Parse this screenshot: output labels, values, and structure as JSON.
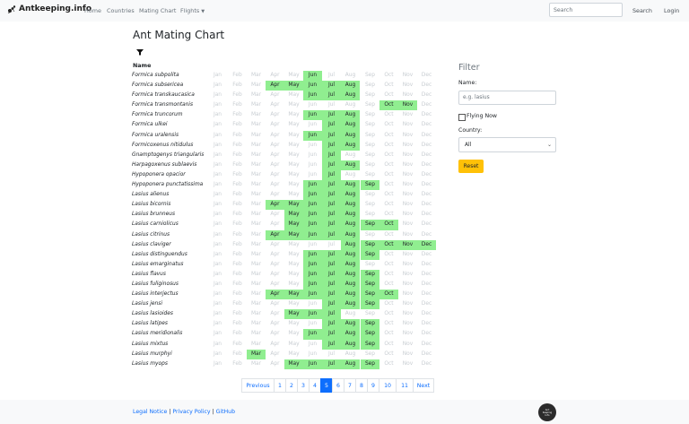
{
  "navbar": {
    "brand": "Antkeeping.info",
    "links": [
      "Home",
      "Countries",
      "Mating Chart",
      "Flights"
    ],
    "search_placeholder": "Search",
    "search_button": "Search",
    "login": "Login"
  },
  "page_title": "Ant Mating Chart",
  "column_header": "Name",
  "months": [
    "Jan",
    "Feb",
    "Mar",
    "Apr",
    "May",
    "Jun",
    "Jul",
    "Aug",
    "Sep",
    "Oct",
    "Nov",
    "Dec"
  ],
  "rows": [
    {
      "name": "Formica subpolita",
      "active": [
        6
      ]
    },
    {
      "name": "Formica subsericea",
      "active": [
        4,
        5,
        6,
        7,
        8
      ]
    },
    {
      "name": "Formica transkaucasica",
      "active": [
        6,
        7,
        8
      ]
    },
    {
      "name": "Formica transmontanis",
      "active": [
        10,
        11
      ]
    },
    {
      "name": "Formica truncorum",
      "active": [
        6,
        7,
        8
      ]
    },
    {
      "name": "Formica ulkei",
      "active": [
        7,
        8
      ]
    },
    {
      "name": "Formica uralensis",
      "active": [
        6,
        7,
        8
      ]
    },
    {
      "name": "Formicoxenus nitidulus",
      "active": [
        7,
        8
      ]
    },
    {
      "name": "Gnamptogenys triangularis",
      "active": [
        7
      ]
    },
    {
      "name": "Harpagoxenus sublaevis",
      "active": [
        7,
        8
      ]
    },
    {
      "name": "Hypoponera opacior",
      "active": [
        7
      ]
    },
    {
      "name": "Hypoponera punctatissima",
      "active": [
        6,
        7,
        8,
        9
      ]
    },
    {
      "name": "Lasius alienus",
      "active": [
        6,
        7,
        8
      ]
    },
    {
      "name": "Lasius bicornis",
      "active": [
        4,
        5,
        6,
        7,
        8
      ]
    },
    {
      "name": "Lasius brunneus",
      "active": [
        5,
        6,
        7,
        8
      ]
    },
    {
      "name": "Lasius carniolicus",
      "active": [
        5,
        6,
        7,
        8,
        9,
        10
      ]
    },
    {
      "name": "Lasius citrinus",
      "active": [
        4,
        5,
        6,
        7,
        8
      ]
    },
    {
      "name": "Lasius claviger",
      "active": [
        8,
        9,
        10,
        11,
        12
      ]
    },
    {
      "name": "Lasius distinguendus",
      "active": [
        6,
        7,
        8,
        9
      ]
    },
    {
      "name": "Lasius emarginatus",
      "active": [
        6,
        7,
        8
      ]
    },
    {
      "name": "Lasius flavus",
      "active": [
        6,
        7,
        8,
        9
      ]
    },
    {
      "name": "Lasius fuliginosus",
      "active": [
        6,
        7,
        8,
        9
      ]
    },
    {
      "name": "Lasius interjectus",
      "active": [
        4,
        5,
        6,
        7,
        8,
        9,
        10
      ]
    },
    {
      "name": "Lasius jensi",
      "active": [
        7,
        8,
        9
      ]
    },
    {
      "name": "Lasius lasioides",
      "active": [
        5,
        6,
        7
      ]
    },
    {
      "name": "Lasius latipes",
      "active": [
        7,
        8,
        9
      ]
    },
    {
      "name": "Lasius meridionalis",
      "active": [
        6,
        7,
        8,
        9
      ]
    },
    {
      "name": "Lasius mixtus",
      "active": [
        7,
        8,
        9
      ]
    },
    {
      "name": "Lasius murphyi",
      "active": [
        3
      ]
    },
    {
      "name": "Lasius myops",
      "active": [
        5,
        6,
        7,
        8,
        9
      ]
    }
  ],
  "filter": {
    "title": "Filter",
    "name_label": "Name:",
    "name_placeholder": "e.g. lasius",
    "flying_now_label": "Flying Now",
    "country_label": "Country:",
    "country_selected": "All",
    "reset_label": "Reset"
  },
  "pagination": {
    "previous": "Previous",
    "pages": [
      "1",
      "2",
      "3",
      "4",
      "5",
      "6",
      "7",
      "8",
      "9",
      "10",
      "11"
    ],
    "current_index": 4,
    "next": "Next"
  },
  "footer": {
    "legal": "Legal Notice",
    "privacy": "Privacy Policy",
    "github": "GitHub",
    "separator": "|",
    "badge_text": "Ant Keeping Info"
  },
  "colors": {
    "active_month": "#90ee90",
    "inactive_month_text": "#c8cdd2",
    "accent": "#0d6efd",
    "reset_button": "#ffc107"
  }
}
